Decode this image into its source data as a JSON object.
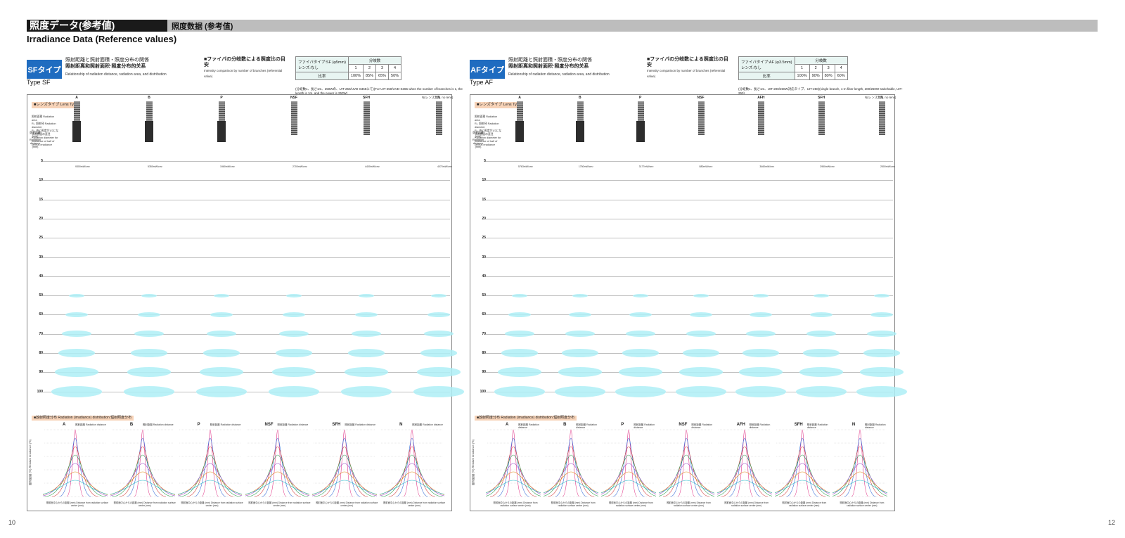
{
  "header": {
    "title_jp": "照度データ(参考値)",
    "title_cn": "照度数据 (参考值)",
    "title_en": "Irradiance Data (Reference values)"
  },
  "pages": {
    "left": "10",
    "right": "12"
  },
  "colors": {
    "badge": "#1f6cc0",
    "glow": "#aeeef6",
    "header_bar": "#bdbdbd",
    "lens_label_bg": "#f7d3b8"
  },
  "panels": [
    {
      "badge": "SFタイプ",
      "type_en": "Type SF",
      "rel_jp": "照射距離と照射面積・照度分布の関係",
      "rel_cn": "照射距离和照射面积·照度分布的关系",
      "rel_en": "Relationship of radiation distance, radiation area, and distribution",
      "cmp_jp": "■ファイバの分岐数による照度比の目安",
      "cmp_en": "Intensity comparison by number of branches (referential value)",
      "ratio": {
        "fiber": "ファイバタイプ:SF (φ5mm)",
        "lens": "レンズ:なし",
        "branch_label": "分岐数",
        "ratio_label": "比率",
        "branches": [
          "1",
          "2",
          "3",
          "4"
        ],
        "values": [
          "100%",
          "85%",
          "65%",
          "50%"
        ]
      },
      "note": "(分岐数1、長さ1m、250Wの、UIT-250/UVD-S365にて)(For UIT-250/UVD-S365 when the number of branches is 1, the length is 1m, and the power is 250W)",
      "lens_types": [
        "A",
        "B",
        "P",
        "NSF",
        "SFH",
        "N"
      ],
      "n_note": "N(レンズ無し no lens)",
      "center_values": [
        "9300mW/cm²",
        "5350mW/cm²",
        "1960mW/cm²",
        "2700mW/cm²",
        "4400mW/cm²",
        "4070mW/cm²"
      ]
    },
    {
      "badge": "AFタイプ",
      "type_en": "Type AF",
      "rel_jp": "照射距離と照射面積・照度分布の関係",
      "rel_cn": "照射距离和照射面积·照度分布的关系",
      "rel_en": "Relationship of radiation distance, radiation area, and distribution",
      "cmp_jp": "■ファイバの分岐数による照度比の目安",
      "cmp_en": "Intensity comparison by number of branches (referential value)",
      "ratio": {
        "fiber": "ファイバタイプ:AF (φ3.5mm)",
        "lens": "レンズ:なし",
        "branch_label": "分岐数",
        "ratio_label": "比率",
        "branches": [
          "1",
          "2",
          "3",
          "4"
        ],
        "values": [
          "100%",
          "90%",
          "80%",
          "60%"
        ]
      },
      "note": "(分岐数1、長さ1m、UIT-200/250W対応タイプ、UIT-250)(single branch, 1-m fiber length, 200/250W-switchable, UIT-250)",
      "lens_types": [
        "A",
        "B",
        "P",
        "NSF",
        "AFH",
        "SFH",
        "N"
      ],
      "n_note": "N(レンズ無し no lens)",
      "center_values": [
        "5763mW/cm²",
        "1750mW/cm²",
        "3177mW/cm²",
        "880mW/cm²",
        "3460mW/cm²",
        "2950mW/cm²",
        "2500mW/cm²"
      ]
    }
  ],
  "labels": {
    "lens_type": "■レンズタイプ Lens Type",
    "radiation_distance": "照射距離 (mm) Radiation distance (mm)",
    "distribution": "■放射照度分布  Radiation (irradiance) distribution  辐射照度分布",
    "y_axis": "相対照度 (%) Relative irradiance (%)",
    "x_axis": "照射面中心からの距離 (mm) Distance from radiation surface center (mm)",
    "legend_area": "照射面積 Radiation area",
    "legend_r1": "R₁: 照射径 Radiation diameter",
    "legend_r2": "R₂: 中心照度が1/2になる照射面の直径 Radiation diameter for irradiance of half of central irradiance",
    "mini_dist": "照射距離 Radiation distance"
  },
  "rows": [
    "5",
    "10",
    "15",
    "20",
    "25",
    "30",
    "40",
    "50",
    "60",
    "70",
    "80",
    "90",
    "100"
  ]
}
